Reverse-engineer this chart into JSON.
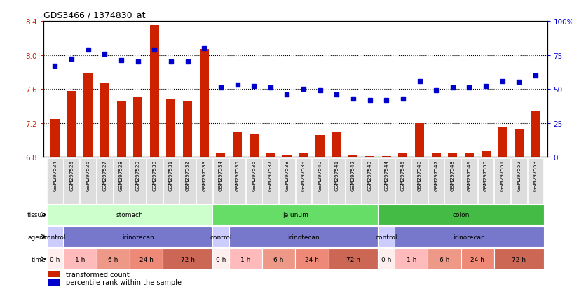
{
  "title": "GDS3466 / 1374830_at",
  "samples": [
    "GSM297524",
    "GSM297525",
    "GSM297526",
    "GSM297527",
    "GSM297528",
    "GSM297529",
    "GSM297530",
    "GSM297531",
    "GSM297532",
    "GSM297533",
    "GSM297534",
    "GSM297535",
    "GSM297536",
    "GSM297537",
    "GSM297538",
    "GSM297539",
    "GSM297540",
    "GSM297541",
    "GSM297542",
    "GSM297543",
    "GSM297544",
    "GSM297545",
    "GSM297546",
    "GSM297547",
    "GSM297548",
    "GSM297549",
    "GSM297550",
    "GSM297551",
    "GSM297552",
    "GSM297553"
  ],
  "transformed_count": [
    7.25,
    7.58,
    7.78,
    7.67,
    7.46,
    7.5,
    8.35,
    7.48,
    7.46,
    8.07,
    6.84,
    7.1,
    7.07,
    6.84,
    6.83,
    6.84,
    7.06,
    7.1,
    6.83,
    6.81,
    6.81,
    6.84,
    7.2,
    6.84,
    6.84,
    6.84,
    6.87,
    7.15,
    7.12,
    7.35
  ],
  "percentile_rank": [
    67,
    72,
    79,
    76,
    71,
    70,
    79,
    70,
    70,
    80,
    51,
    53,
    52,
    51,
    46,
    50,
    49,
    46,
    43,
    42,
    42,
    43,
    56,
    49,
    51,
    51,
    52,
    56,
    55,
    60
  ],
  "ylim_left": [
    6.8,
    8.4
  ],
  "ylim_right": [
    0,
    100
  ],
  "yticks_left": [
    6.8,
    7.2,
    7.6,
    8.0,
    8.4
  ],
  "yticks_right": [
    0,
    25,
    50,
    75,
    100
  ],
  "bar_color": "#cc2200",
  "dot_color": "#0000cc",
  "bg_color": "#ffffff",
  "tissue_rows": [
    {
      "label": "stomach",
      "start": 0,
      "end": 10,
      "color": "#ccffcc"
    },
    {
      "label": "jejunum",
      "start": 10,
      "end": 20,
      "color": "#66dd66"
    },
    {
      "label": "colon",
      "start": 20,
      "end": 30,
      "color": "#44bb44"
    }
  ],
  "agent_rows": [
    {
      "label": "control",
      "start": 0,
      "end": 1,
      "color": "#ccccff"
    },
    {
      "label": "irinotecan",
      "start": 1,
      "end": 10,
      "color": "#7777cc"
    },
    {
      "label": "control",
      "start": 10,
      "end": 11,
      "color": "#ccccff"
    },
    {
      "label": "irinotecan",
      "start": 11,
      "end": 20,
      "color": "#7777cc"
    },
    {
      "label": "control",
      "start": 20,
      "end": 21,
      "color": "#ccccff"
    },
    {
      "label": "irinotecan",
      "start": 21,
      "end": 30,
      "color": "#7777cc"
    }
  ],
  "time_rows": [
    {
      "label": "0 h",
      "start": 0,
      "end": 1,
      "color": "#ffeeee"
    },
    {
      "label": "1 h",
      "start": 1,
      "end": 3,
      "color": "#ffbbbb"
    },
    {
      "label": "6 h",
      "start": 3,
      "end": 5,
      "color": "#ee9988"
    },
    {
      "label": "24 h",
      "start": 5,
      "end": 7,
      "color": "#ee8877"
    },
    {
      "label": "72 h",
      "start": 7,
      "end": 10,
      "color": "#cc6655"
    },
    {
      "label": "0 h",
      "start": 10,
      "end": 11,
      "color": "#ffeeee"
    },
    {
      "label": "1 h",
      "start": 11,
      "end": 13,
      "color": "#ffbbbb"
    },
    {
      "label": "6 h",
      "start": 13,
      "end": 15,
      "color": "#ee9988"
    },
    {
      "label": "24 h",
      "start": 15,
      "end": 17,
      "color": "#ee8877"
    },
    {
      "label": "72 h",
      "start": 17,
      "end": 20,
      "color": "#cc6655"
    },
    {
      "label": "0 h",
      "start": 20,
      "end": 21,
      "color": "#ffeeee"
    },
    {
      "label": "1 h",
      "start": 21,
      "end": 23,
      "color": "#ffbbbb"
    },
    {
      "label": "6 h",
      "start": 23,
      "end": 25,
      "color": "#ee9988"
    },
    {
      "label": "24 h",
      "start": 25,
      "end": 27,
      "color": "#ee8877"
    },
    {
      "label": "72 h",
      "start": 27,
      "end": 30,
      "color": "#cc6655"
    }
  ],
  "legend_items": [
    {
      "label": "transformed count",
      "color": "#cc2200"
    },
    {
      "label": "percentile rank within the sample",
      "color": "#0000cc"
    }
  ]
}
